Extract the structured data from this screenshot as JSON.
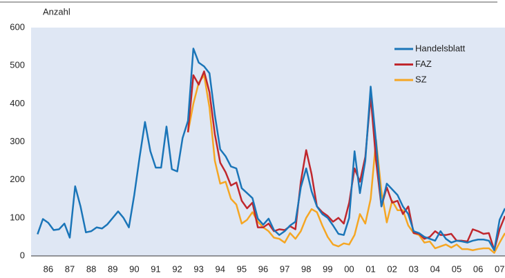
{
  "chart_data": {
    "type": "line",
    "y_label": "Anzahl",
    "x": [
      1986,
      1986.25,
      1986.5,
      1986.75,
      1987,
      1987.25,
      1987.5,
      1987.75,
      1988,
      1988.25,
      1988.5,
      1988.75,
      1989,
      1989.25,
      1989.5,
      1989.75,
      1990,
      1990.25,
      1990.5,
      1990.75,
      1991,
      1991.25,
      1991.5,
      1991.75,
      1992,
      1992.25,
      1992.5,
      1992.75,
      1993,
      1993.25,
      1993.5,
      1993.75,
      1994,
      1994.25,
      1994.5,
      1994.75,
      1995,
      1995.25,
      1995.5,
      1995.75,
      1996,
      1996.25,
      1996.5,
      1996.75,
      1997,
      1997.25,
      1997.5,
      1997.75,
      1998,
      1998.25,
      1998.5,
      1998.75,
      1999,
      1999.25,
      1999.5,
      1999.75,
      2000,
      2000.25,
      2000.5,
      2000.75,
      2001,
      2001.25,
      2001.5,
      2001.75,
      2002,
      2002.25,
      2002.5,
      2002.75,
      2003,
      2003.25,
      2003.5,
      2003.75,
      2004,
      2004.25,
      2004.5,
      2004.75,
      2005,
      2005.25,
      2005.5,
      2005.75,
      2006,
      2006.25,
      2006.5,
      2006.75,
      2007,
      2007.25,
      2007.5,
      2007.75
    ],
    "series": [
      {
        "name": "Handelsblatt",
        "color": "#1a75b8",
        "values": [
          57,
          97,
          87,
          68,
          70,
          85,
          48,
          183,
          130,
          62,
          65,
          75,
          72,
          83,
          100,
          117,
          100,
          75,
          160,
          260,
          352,
          275,
          232,
          232,
          340,
          228,
          222,
          310,
          355,
          545,
          508,
          498,
          480,
          370,
          280,
          262,
          235,
          230,
          178,
          165,
          152,
          98,
          82,
          98,
          68,
          55,
          65,
          80,
          90,
          180,
          230,
          170,
          130,
          110,
          100,
          80,
          58,
          55,
          100,
          275,
          165,
          250,
          445,
          300,
          130,
          190,
          175,
          160,
          130,
          110,
          65,
          60,
          50,
          45,
          40,
          65,
          45,
          35,
          40,
          38,
          35,
          40,
          43,
          43,
          40,
          15,
          95,
          125
        ]
      },
      {
        "name": "FAZ",
        "color": "#c0272d",
        "values": [
          null,
          null,
          null,
          null,
          null,
          null,
          null,
          null,
          null,
          null,
          null,
          null,
          null,
          null,
          null,
          null,
          null,
          null,
          null,
          null,
          null,
          null,
          null,
          null,
          null,
          null,
          null,
          null,
          325,
          475,
          450,
          485,
          430,
          320,
          245,
          220,
          185,
          193,
          145,
          125,
          140,
          75,
          75,
          85,
          65,
          70,
          68,
          78,
          70,
          195,
          278,
          215,
          130,
          115,
          105,
          90,
          100,
          85,
          140,
          230,
          195,
          260,
          420,
          250,
          130,
          180,
          140,
          145,
          110,
          130,
          60,
          58,
          45,
          50,
          65,
          55,
          55,
          58,
          40,
          40,
          38,
          70,
          65,
          58,
          60,
          15,
          70,
          105
        ]
      },
      {
        "name": "SZ",
        "color": "#f5a623",
        "values": [
          null,
          null,
          null,
          null,
          null,
          null,
          null,
          null,
          null,
          null,
          null,
          null,
          null,
          null,
          null,
          null,
          null,
          null,
          null,
          null,
          null,
          null,
          null,
          null,
          null,
          null,
          null,
          null,
          325,
          400,
          455,
          475,
          390,
          250,
          190,
          195,
          150,
          135,
          85,
          95,
          115,
          90,
          75,
          65,
          48,
          45,
          35,
          60,
          45,
          65,
          100,
          123,
          115,
          80,
          50,
          30,
          25,
          33,
          30,
          55,
          110,
          85,
          150,
          305,
          170,
          88,
          145,
          120,
          120,
          80,
          60,
          55,
          35,
          38,
          20,
          25,
          30,
          22,
          30,
          18,
          18,
          15,
          18,
          20,
          20,
          8,
          35,
          60
        ]
      }
    ],
    "xlim": [
      1985.7,
      2007.75
    ],
    "xticks": [
      {
        "value": 1986.5,
        "label": "86"
      },
      {
        "value": 1987.5,
        "label": "87"
      },
      {
        "value": 1988.5,
        "label": "88"
      },
      {
        "value": 1989.5,
        "label": "89"
      },
      {
        "value": 1990.5,
        "label": "90"
      },
      {
        "value": 1991.5,
        "label": "91"
      },
      {
        "value": 1992.5,
        "label": "92"
      },
      {
        "value": 1993.5,
        "label": "93"
      },
      {
        "value": 1994.5,
        "label": "94"
      },
      {
        "value": 1995.5,
        "label": "95"
      },
      {
        "value": 1996.5,
        "label": "96"
      },
      {
        "value": 1997.5,
        "label": "97"
      },
      {
        "value": 1998.5,
        "label": "98"
      },
      {
        "value": 1999.5,
        "label": "99"
      },
      {
        "value": 2000.5,
        "label": "00"
      },
      {
        "value": 2001.5,
        "label": "01"
      },
      {
        "value": 2002.5,
        "label": "02"
      },
      {
        "value": 2003.5,
        "label": "03"
      },
      {
        "value": 2004.5,
        "label": "04"
      },
      {
        "value": 2005.5,
        "label": "05"
      },
      {
        "value": 2006.5,
        "label": "06"
      },
      {
        "value": 2007.5,
        "label": "07"
      }
    ],
    "ylim": [
      0,
      600
    ],
    "yticks": [
      0,
      100,
      200,
      300,
      400,
      500,
      600
    ],
    "grid": false,
    "legend": "top-right"
  }
}
